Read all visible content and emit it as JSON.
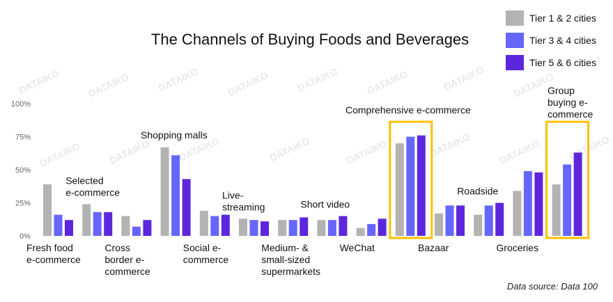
{
  "chart_data": {
    "type": "bar",
    "title": "The Channels of Buying Foods and Beverages",
    "source": "Data source: Data 100",
    "watermark": "DATAIKO",
    "xlabel": "",
    "ylabel": "",
    "ylim": [
      0,
      100
    ],
    "yticks": [
      "0%",
      "25%",
      "50%",
      "75%",
      "100%"
    ],
    "legend_position": "top-right",
    "categories": [
      [
        "Fresh food",
        "e-commerce"
      ],
      [
        "Selected",
        "e-commerce"
      ],
      [
        "Cross",
        "border e-",
        "commerce"
      ],
      [
        "Shopping malls"
      ],
      [
        "Social e-",
        "commerce"
      ],
      [
        "Live-",
        "streaming"
      ],
      [
        "Medium- &",
        "small-sized",
        "supermarkets"
      ],
      [
        "Short video"
      ],
      [
        "WeChat"
      ],
      [
        "Comprehensive e-commerce"
      ],
      [
        "Bazaar"
      ],
      [
        "Roadside"
      ],
      [
        "Groceries"
      ],
      [
        "Group",
        "buying e-",
        "commerce"
      ]
    ],
    "label_side": [
      "below",
      "above",
      "below",
      "above",
      "below",
      "above",
      "below",
      "above",
      "below",
      "above",
      "below",
      "above",
      "below",
      "above"
    ],
    "highlight": [
      9,
      13
    ],
    "series": [
      {
        "name": "Tier 1 & 2 cities",
        "color": "#b3b3b3",
        "values": [
          39,
          24,
          15,
          67,
          19,
          13,
          12,
          12,
          6,
          70,
          17,
          16,
          34,
          39
        ]
      },
      {
        "name": "Tier 3 & 4 cities",
        "color": "#6666ff",
        "values": [
          16,
          18,
          7,
          61,
          15,
          12,
          12,
          12,
          9,
          75,
          23,
          23,
          49,
          54
        ]
      },
      {
        "name": "Tier 5 & 6 cities",
        "color": "#5c27dc",
        "values": [
          12,
          18,
          12,
          43,
          16,
          11,
          14,
          15,
          13,
          76,
          23,
          25,
          48,
          63
        ]
      }
    ],
    "highlight_color": "#ffc000"
  }
}
